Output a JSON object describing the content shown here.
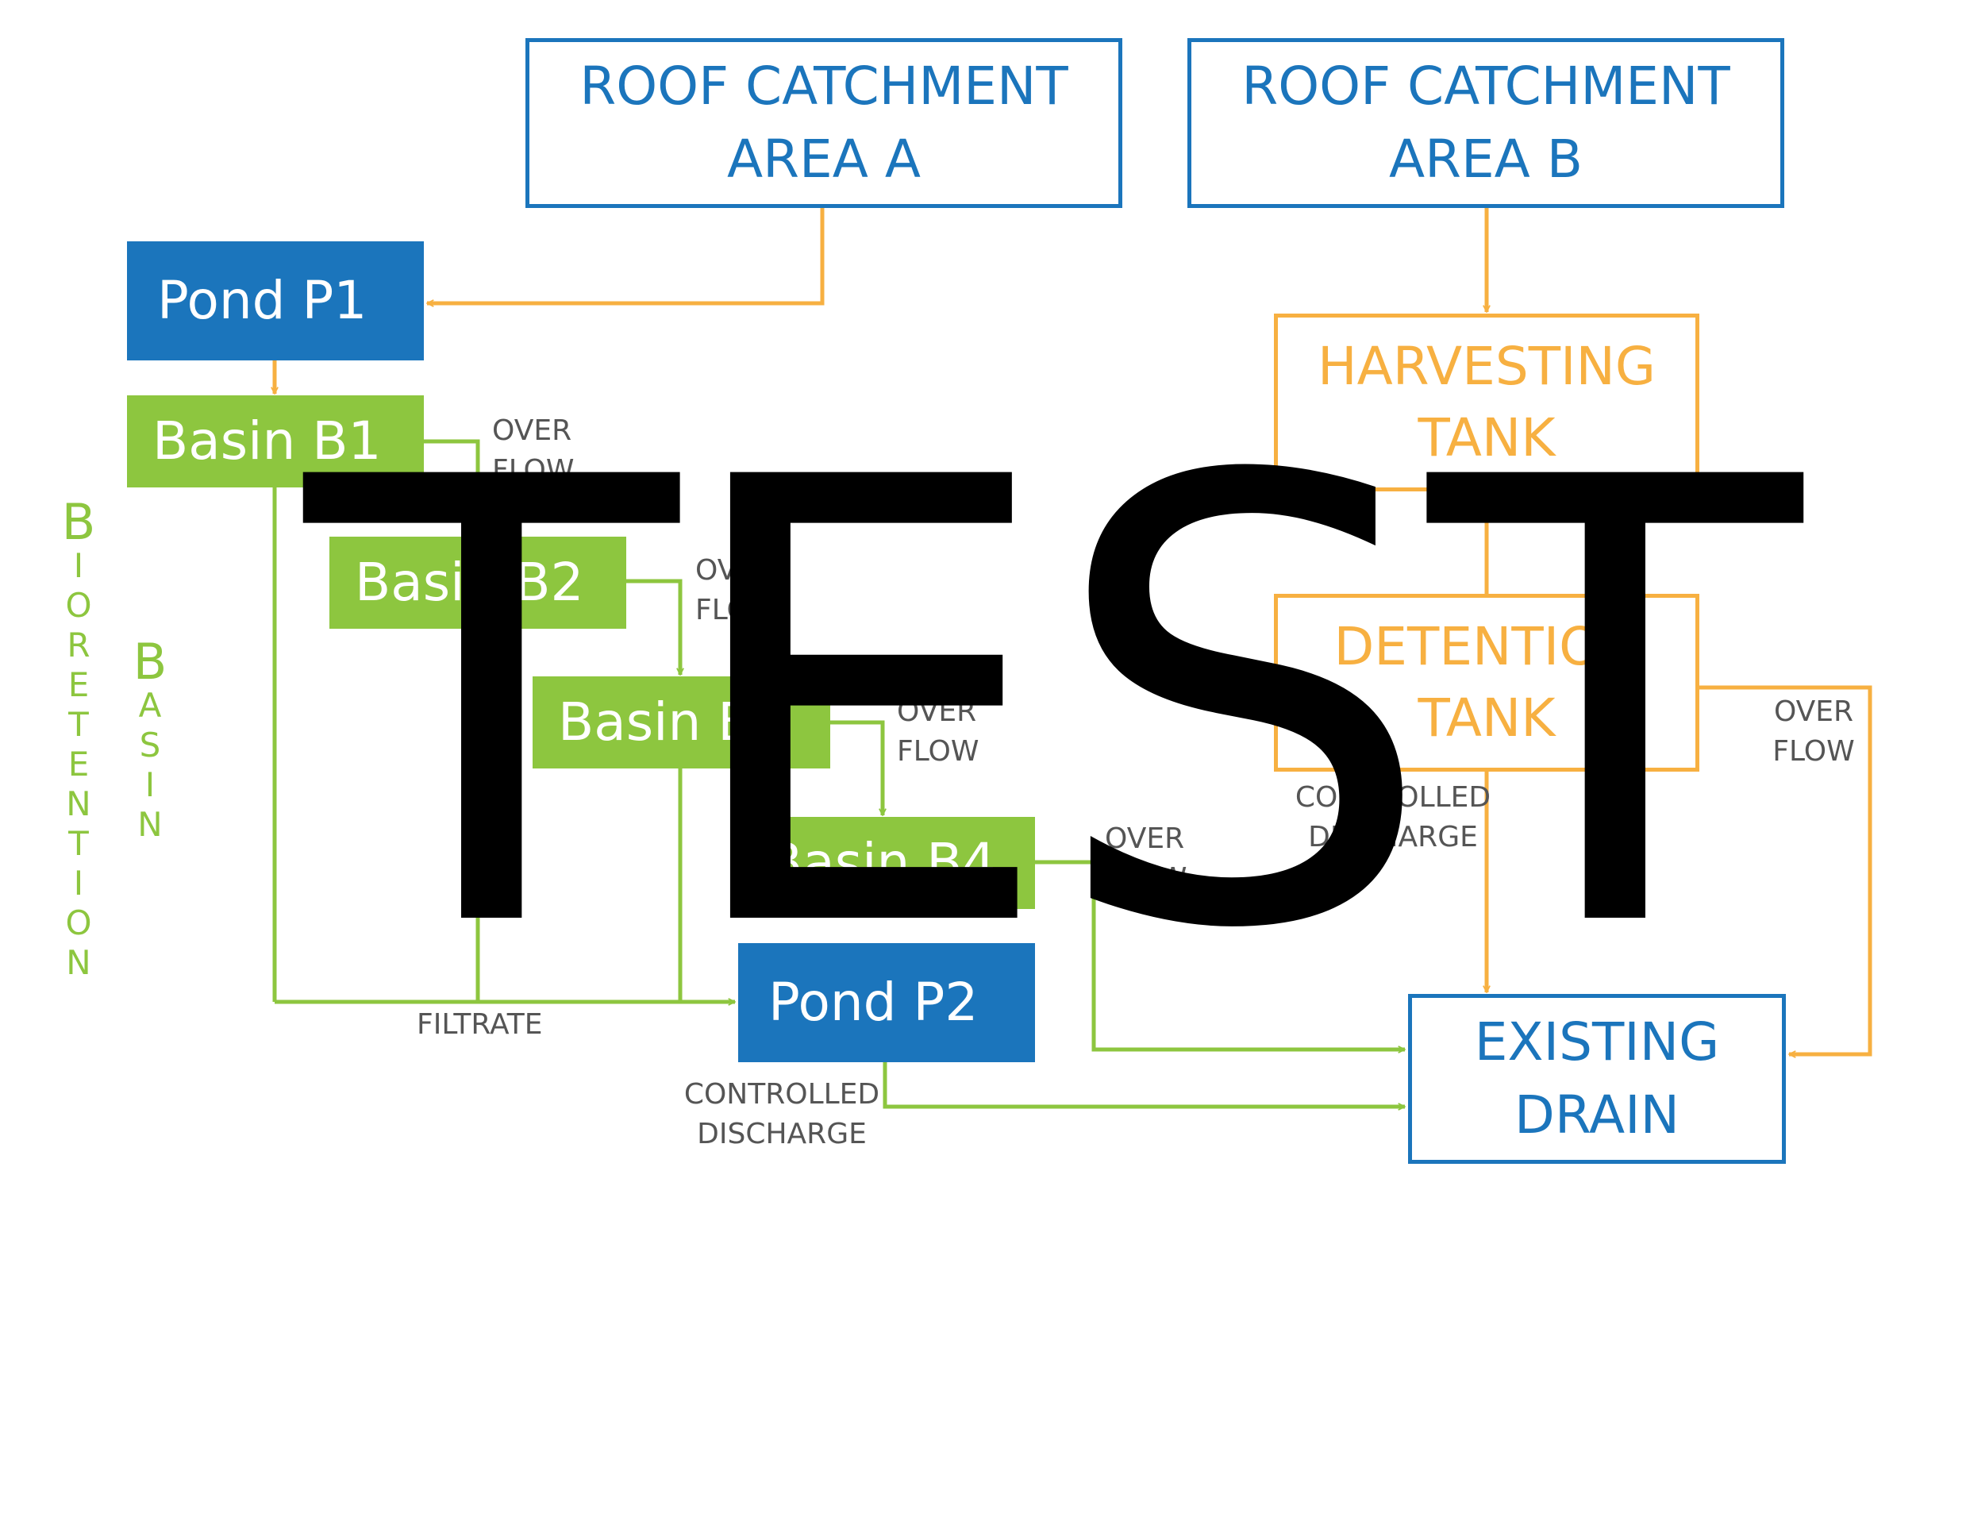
{
  "colors": {
    "blue": "#1B75BC",
    "green": "#8DC63F",
    "orange": "#F7B041",
    "label_gray": "#555555",
    "watermark": "#000000"
  },
  "nodes": {
    "roof_a": [
      "ROOF CATCHMENT",
      "AREA A"
    ],
    "roof_b": [
      "ROOF CATCHMENT",
      "AREA B"
    ],
    "pond_p1": "Pond P1",
    "basin_b1": "Basin B1",
    "basin_b2": "Basin B2",
    "basin_b3": "Basin B3",
    "basin_b4": "Basin B4",
    "pond_p2": "Pond P2",
    "harvesting_tank": [
      "HARVESTING",
      "TANK"
    ],
    "detention_tank": [
      "DETENTION",
      "TANK"
    ],
    "existing_drain": [
      "EXISTING",
      "DRAIN"
    ]
  },
  "edge_labels": {
    "overflow_b1": [
      "OVER",
      "FLOW"
    ],
    "overflow_b2": [
      "OVER",
      "FLOW"
    ],
    "overflow_b3": [
      "OVER",
      "FLOW"
    ],
    "overflow_b4": [
      "OVER",
      "FLOW"
    ],
    "overflow_detention": [
      "OVER",
      "FLOW"
    ],
    "filtrate": "FILTRATE",
    "controlled_discharge_p2": [
      "CONTROLLED",
      "DISCHARGE"
    ],
    "controlled_discharge_tank": [
      "CONTROLLED",
      "DISCHARGE"
    ]
  },
  "side_labels": {
    "bioretention": [
      "B",
      "I",
      "O",
      "R",
      "E",
      "T",
      "E",
      "N",
      "T",
      "I",
      "O",
      "N"
    ],
    "basin": [
      "B",
      "A",
      "S",
      "I",
      "N"
    ]
  },
  "watermark": "TEST"
}
